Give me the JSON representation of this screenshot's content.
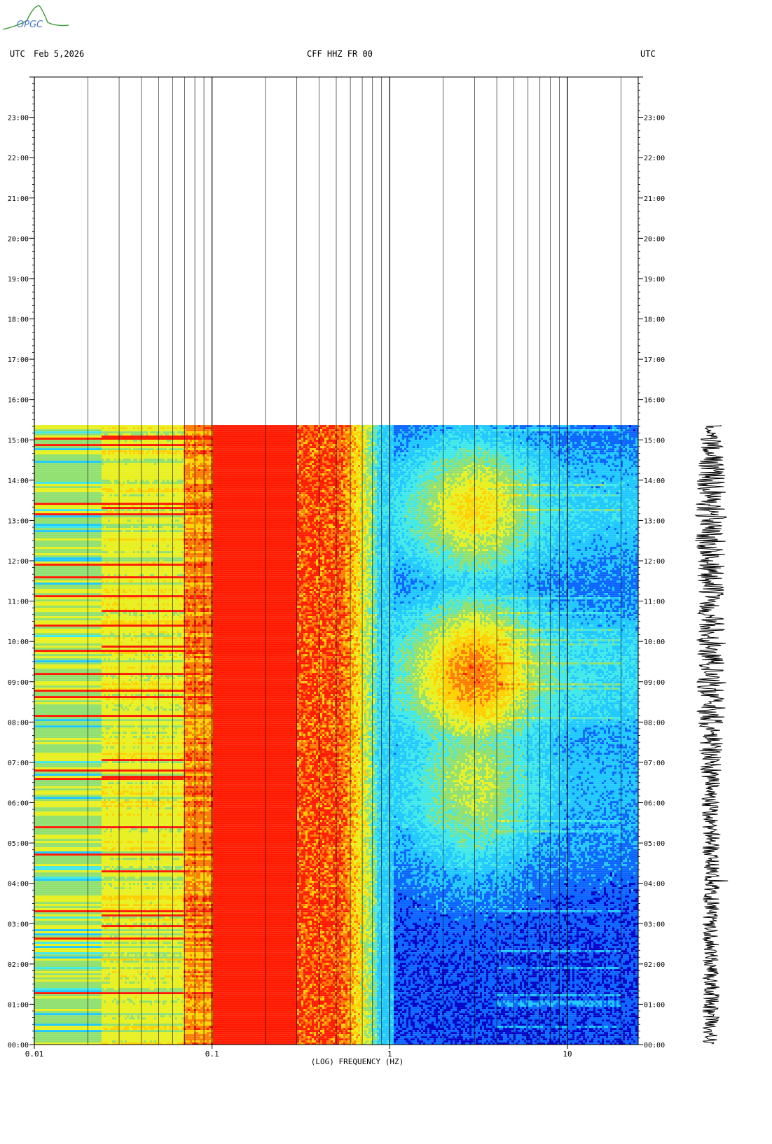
{
  "header": {
    "left_tz": "UTC",
    "date": "Feb 5,2026",
    "title": "CFF HHZ FR 00",
    "right_tz": "UTC"
  },
  "logo": {
    "text": "OPGC"
  },
  "chart_data": {
    "type": "heatmap",
    "title": "CFF HHZ FR 00",
    "xlabel": "(LOG) FREQUENCY (HZ)",
    "xscale": "log",
    "xlim": [
      0.01,
      25
    ],
    "x_tick_labels": [
      "0.01",
      "0.1",
      "1",
      "10"
    ],
    "ylim_hours": [
      0,
      24
    ],
    "y_tick_labels": [
      "00:00",
      "01:00",
      "02:00",
      "03:00",
      "04:00",
      "05:00",
      "06:00",
      "07:00",
      "08:00",
      "09:00",
      "10:00",
      "11:00",
      "12:00",
      "13:00",
      "14:00",
      "15:00",
      "16:00",
      "17:00",
      "18:00",
      "19:00",
      "20:00",
      "21:00",
      "22:00",
      "23:00"
    ],
    "data_end_time": "15:22",
    "colormap": [
      "#0000c8",
      "#0a64ff",
      "#1ec8ff",
      "#40e8e8",
      "#90e070",
      "#e8f020",
      "#ffd000",
      "#ff7a00",
      "#ff1a00",
      "#800000"
    ],
    "bands": [
      {
        "from_hz": 0.01,
        "to_hz": 0.024,
        "level": "cyan-green"
      },
      {
        "from_hz": 0.024,
        "to_hz": 0.07,
        "level": "green-yellow"
      },
      {
        "from_hz": 0.07,
        "to_hz": 0.1,
        "level": "orange-red"
      },
      {
        "from_hz": 0.1,
        "to_hz": 0.55,
        "level": "dark-red"
      },
      {
        "from_hz": 0.55,
        "to_hz": 0.85,
        "level": "red-orange-yellow"
      },
      {
        "from_hz": 0.85,
        "to_hz": 1.0,
        "level": "cyan"
      },
      {
        "from_hz": 1.0,
        "to_hz": 25,
        "level": "blue"
      }
    ],
    "microseism_peak_hz": 3.0,
    "seismogram_trace": true,
    "grid": true
  }
}
